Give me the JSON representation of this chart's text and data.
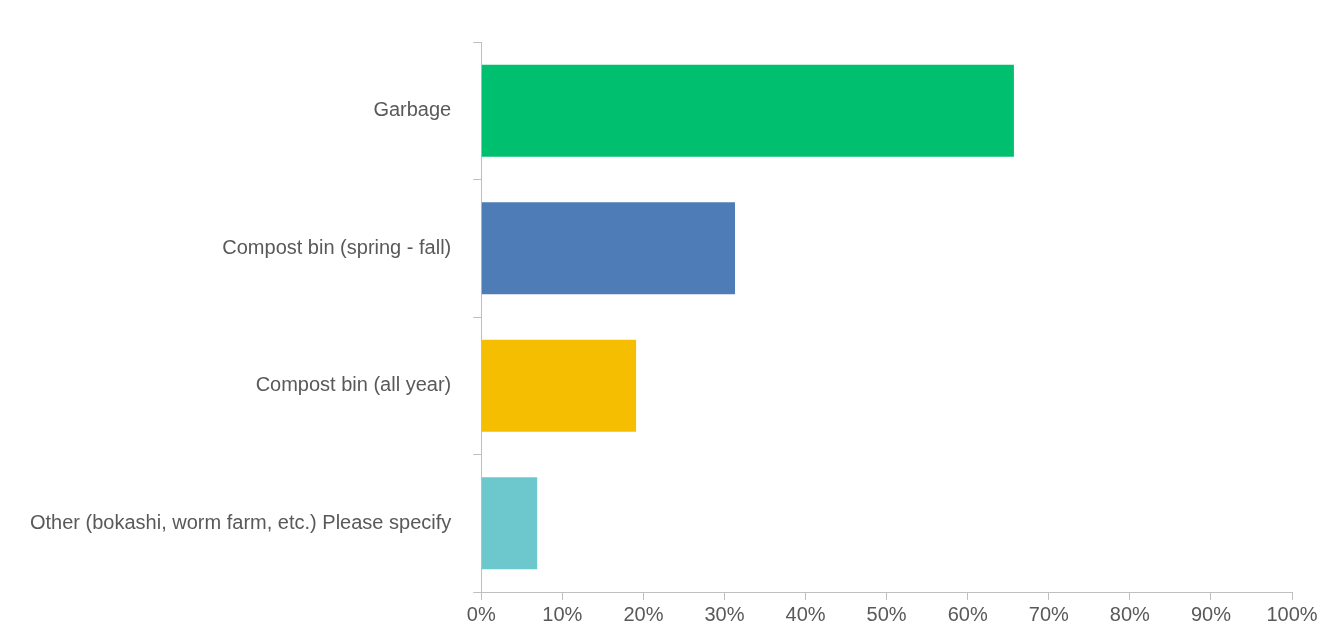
{
  "chart_data": {
    "type": "bar",
    "orientation": "horizontal",
    "categories": [
      "Garbage",
      "Compost bin (spring - fall)",
      "Compost bin (all year)",
      "Other (bokashi, worm farm, etc.) Please specify"
    ],
    "values": [
      65.7,
      31.3,
      19.1,
      6.9
    ],
    "colors": [
      "#00bf6f",
      "#4e7cb6",
      "#f6be00",
      "#6cc8cd"
    ],
    "xlim": [
      0,
      100
    ],
    "xticks": [
      {
        "value": 0,
        "label": "0%"
      },
      {
        "value": 10,
        "label": "10%"
      },
      {
        "value": 20,
        "label": "20%"
      },
      {
        "value": 30,
        "label": "30%"
      },
      {
        "value": 40,
        "label": "40%"
      },
      {
        "value": 50,
        "label": "50%"
      },
      {
        "value": 60,
        "label": "60%"
      },
      {
        "value": 70,
        "label": "70%"
      },
      {
        "value": 80,
        "label": "80%"
      },
      {
        "value": 90,
        "label": "90%"
      },
      {
        "value": 100,
        "label": "100%"
      }
    ],
    "grid": false,
    "legend": false
  }
}
